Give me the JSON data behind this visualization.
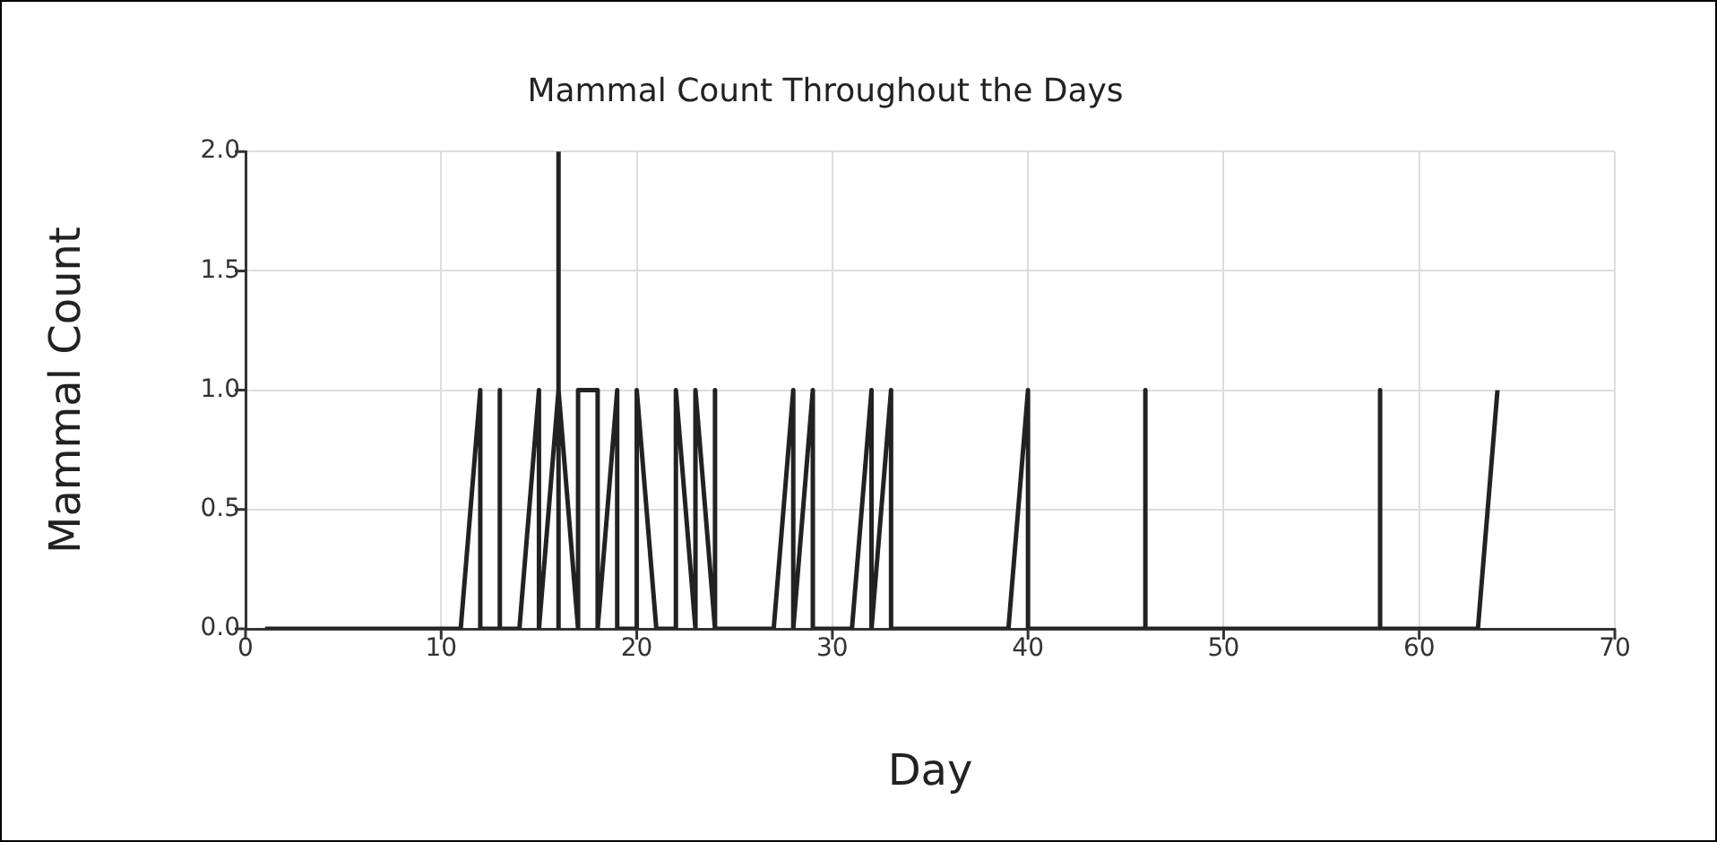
{
  "chart_data": {
    "type": "line",
    "title": "Mammal Count Throughout the Days",
    "xlabel": "Day",
    "ylabel": "Mammal Count",
    "xlim": [
      0,
      70
    ],
    "xticks": [
      0,
      10,
      20,
      30,
      40,
      50,
      60,
      70
    ],
    "ylim": [
      0,
      2
    ],
    "yticks": [
      {
        "value": 0,
        "label": "0.0"
      },
      {
        "value": 0.5,
        "label": "0.5"
      },
      {
        "value": 1,
        "label": "1.0"
      },
      {
        "value": 1.5,
        "label": "1.5"
      },
      {
        "value": 2,
        "label": "2.0"
      }
    ],
    "grid": true,
    "legend": false,
    "marker": "none",
    "line_style": "solid",
    "series": [
      {
        "color": "#222222",
        "x": [
          1,
          11,
          12,
          12,
          13,
          13,
          13,
          14,
          15,
          15,
          16,
          16,
          16,
          16,
          17,
          17,
          18,
          18,
          19,
          19,
          20,
          20,
          21,
          22,
          22,
          23,
          23,
          24,
          24,
          24,
          27,
          28,
          28,
          29,
          29,
          31,
          32,
          32,
          33,
          33,
          39,
          40,
          40,
          46,
          46,
          46,
          58,
          58,
          58,
          63,
          64
        ],
        "values": [
          0,
          0,
          1,
          0,
          0,
          1,
          0,
          0,
          1,
          0,
          1,
          2,
          0,
          1,
          0,
          1,
          1,
          0,
          1,
          0,
          0,
          1,
          0,
          0,
          1,
          0,
          1,
          0,
          1,
          0,
          0,
          1,
          0,
          1,
          0,
          0,
          1,
          0,
          1,
          0,
          0,
          1,
          0,
          0,
          1,
          0,
          0,
          1,
          0,
          0,
          1
        ]
      }
    ]
  }
}
